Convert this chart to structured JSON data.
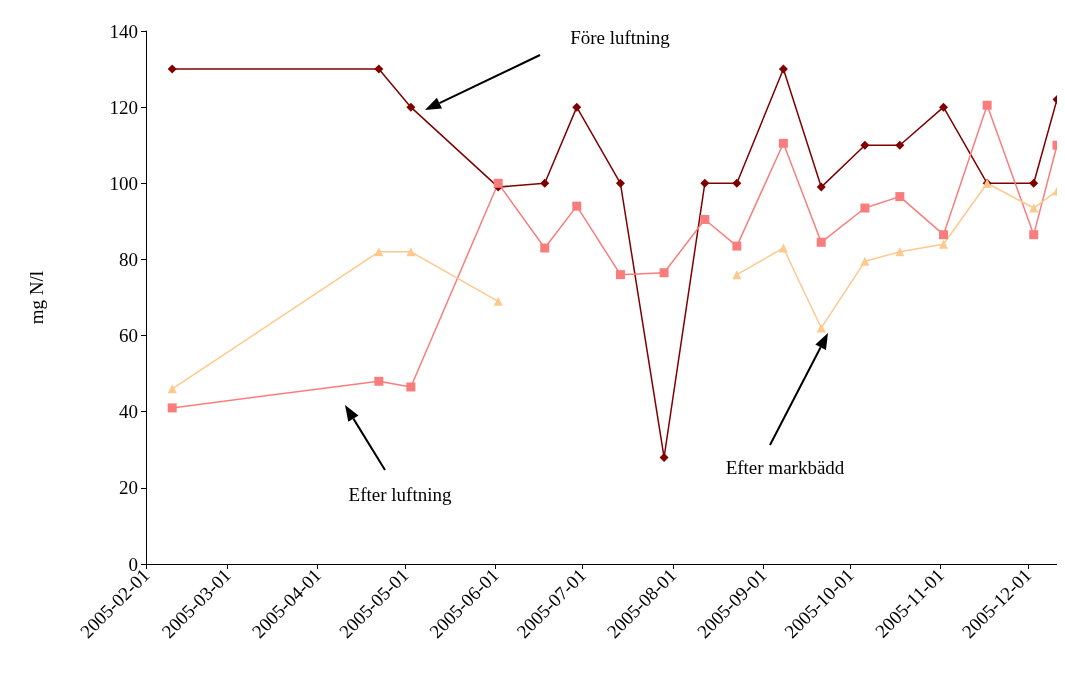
{
  "chart_data": {
    "type": "line",
    "ylabel": "mg N/l",
    "x": [
      "2005-02-10",
      "2005-04-22",
      "2005-05-03",
      "2005-06-02",
      "2005-06-18",
      "2005-06-29",
      "2005-07-14",
      "2005-07-29",
      "2005-08-12",
      "2005-08-23",
      "2005-09-08",
      "2005-09-21",
      "2005-10-06",
      "2005-10-18",
      "2005-11-02",
      "2005-11-17",
      "2005-12-03",
      "2005-12-11"
    ],
    "series": [
      {
        "color": "#800000",
        "marker": "diamond",
        "values": [
          130,
          130,
          120,
          99,
          100,
          120,
          100,
          28,
          100,
          100,
          130,
          99,
          110,
          110,
          120,
          100,
          100,
          122
        ]
      },
      {
        "color": "#fa7d7d",
        "marker": "square",
        "values": [
          41,
          48,
          46.5,
          100,
          83,
          94,
          76,
          76.5,
          90.5,
          83.5,
          110.5,
          84.5,
          93.5,
          96.5,
          86.5,
          120.5,
          86.5,
          110
        ]
      },
      {
        "color": "#fdc98f",
        "marker": "triangle",
        "values": [
          46,
          82,
          82,
          69,
          null,
          null,
          null,
          null,
          null,
          76,
          83,
          62,
          79.5,
          82,
          84,
          100,
          93.5,
          98
        ]
      }
    ],
    "xlim": [
      "2005-02-01",
      "2005-12-11"
    ],
    "xticks": [
      "2005-02-01",
      "2005-03-01",
      "2005-04-01",
      "2005-05-01",
      "2005-06-01",
      "2005-07-01",
      "2005-08-01",
      "2005-09-01",
      "2005-10-01",
      "2005-11-01",
      "2005-12-01"
    ],
    "ylim": [
      0,
      140
    ],
    "yticks": [
      0,
      20,
      40,
      60,
      80,
      100,
      120,
      140
    ],
    "grid": false,
    "annotations": [
      "Före luftning",
      "Efter luftning",
      "Efter markbädd"
    ]
  }
}
